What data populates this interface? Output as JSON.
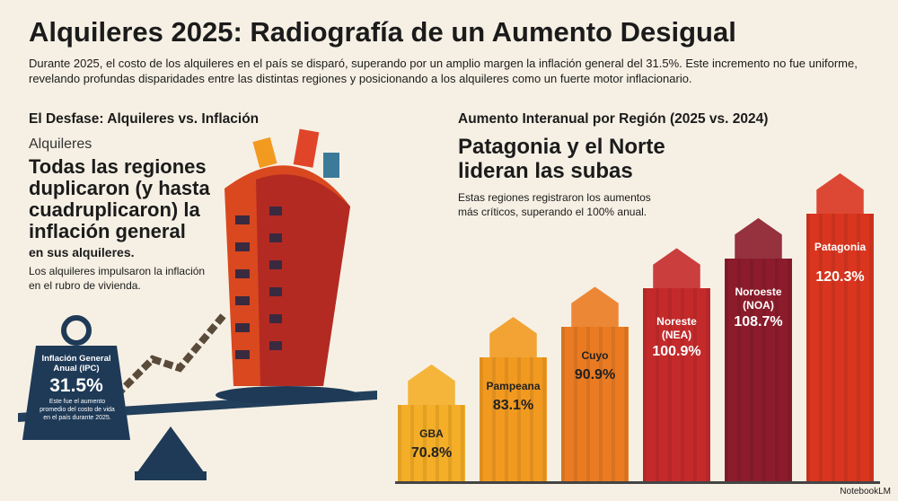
{
  "header": {
    "title": "Alquileres 2025: Radiografía de un Aumento Desigual",
    "subtitle": "Durante 2025, el costo de los alquileres en el país se disparó, superando por un amplio margen la inflación general del 31.5%. Este incremento no fue uniforme, revelando profundas disparidades entre las distintas regiones y posicionando a los alquileres como un fuerte motor inflacionario."
  },
  "left": {
    "section_title": "El Desfase: Alquileres vs. Inflación",
    "kicker": "Alquileres",
    "headline": "Todas las regiones duplicaron (y hasta cuadruplicaron) la inflación general",
    "headline_tail": "en sus alquileres.",
    "body": "Los alquileres impulsaron la inflación en el rubro de vivienda.",
    "weight": {
      "label": "Inflación General Anual (IPC)",
      "value": "31.5%",
      "note": "Este fue el aumento promedio del costo de vida en el país durante 2025."
    }
  },
  "chart_data": {
    "type": "bar",
    "section_title": "Aumento Interanual por Región (2025 vs. 2024)",
    "title": "Patagonia y el Norte lideran las subas",
    "subtitle": "Estas regiones registraron los aumentos más críticos, superando el 100% anual.",
    "categories": [
      "GBA",
      "Pampeana",
      "Cuyo",
      "Noreste (NEA)",
      "Noroeste (NOA)",
      "Patagonia"
    ],
    "values": [
      70.8,
      83.1,
      90.9,
      100.9,
      108.7,
      120.3
    ],
    "value_labels": [
      "70.8%",
      "83.1%",
      "90.9%",
      "100.9%",
      "108.7%",
      "120.3%"
    ],
    "colors": [
      "#f4ae27",
      "#f29a20",
      "#eb7b22",
      "#c52a2b",
      "#8c1c2b",
      "#d9351f"
    ]
  },
  "footer": "NotebookLM"
}
